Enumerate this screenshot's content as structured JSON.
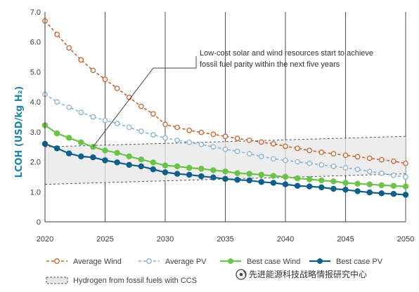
{
  "chart_data": {
    "type": "line",
    "title": "",
    "xlabel": "",
    "ylabel": "LCOH (USD/kg H₂)",
    "xlim": [
      2020,
      2050
    ],
    "ylim": [
      0,
      7
    ],
    "xticks": [
      "2020",
      "2025",
      "2030",
      "2035",
      "2040",
      "2045",
      "2050"
    ],
    "yticks": [
      "0",
      "1.0",
      "2.0",
      "3.0",
      "4.0",
      "5.0",
      "6.0",
      "7.0"
    ],
    "x": [
      2020,
      2021,
      2022,
      2023,
      2024,
      2025,
      2026,
      2027,
      2028,
      2029,
      2030,
      2031,
      2032,
      2033,
      2034,
      2035,
      2036,
      2037,
      2038,
      2039,
      2040,
      2041,
      2042,
      2043,
      2044,
      2045,
      2046,
      2047,
      2048,
      2049,
      2050
    ],
    "grid": "vertical",
    "legend_position": "bottom",
    "annotation": {
      "lines": [
        "Low-cost solar and wind resources start to achieve",
        "fossil fuel parity within the next five years"
      ],
      "points_to": {
        "x": 2024,
        "y": 2.5
      }
    },
    "band": {
      "name": "Hydrogen from fossil fuels with CCS",
      "lower": {
        "x": [
          2020,
          2050
        ],
        "y": [
          1.25,
          1.6
        ]
      },
      "upper": {
        "x": [
          2020,
          2050
        ],
        "y": [
          2.5,
          2.85
        ]
      }
    },
    "series": [
      {
        "name": "Average Wind",
        "style": "dashed-open",
        "color": "#c8632b",
        "values": [
          6.7,
          6.25,
          5.8,
          5.4,
          5.05,
          4.75,
          4.45,
          4.15,
          3.85,
          3.6,
          3.25,
          3.15,
          3.05,
          2.98,
          2.92,
          2.85,
          2.78,
          2.72,
          2.66,
          2.6,
          2.52,
          2.45,
          2.38,
          2.32,
          2.27,
          2.22,
          2.17,
          2.12,
          2.07,
          2.02,
          1.95
        ]
      },
      {
        "name": "Average PV",
        "style": "dashed-open",
        "color": "#8ab3d1",
        "values": [
          4.25,
          4.0,
          3.82,
          3.65,
          3.5,
          3.38,
          3.28,
          3.15,
          3.02,
          2.9,
          2.8,
          2.72,
          2.65,
          2.58,
          2.5,
          2.42,
          2.35,
          2.27,
          2.18,
          2.1,
          2.05,
          2.0,
          1.95,
          1.9,
          1.85,
          1.8,
          1.75,
          1.68,
          1.62,
          1.55,
          1.5
        ]
      },
      {
        "name": "Best case Wind",
        "style": "solid-filled",
        "color": "#6cc24a",
        "values": [
          3.22,
          2.95,
          2.8,
          2.65,
          2.5,
          2.38,
          2.3,
          2.18,
          2.08,
          1.98,
          1.88,
          1.85,
          1.8,
          1.77,
          1.72,
          1.68,
          1.62,
          1.6,
          1.57,
          1.53,
          1.5,
          1.45,
          1.42,
          1.38,
          1.35,
          1.3,
          1.27,
          1.25,
          1.22,
          1.2,
          1.18
        ]
      },
      {
        "name": "Best case PV",
        "style": "solid-filled",
        "color": "#0f5f8a",
        "values": [
          2.6,
          2.45,
          2.28,
          2.18,
          2.15,
          2.05,
          1.98,
          1.9,
          1.85,
          1.75,
          1.65,
          1.6,
          1.57,
          1.52,
          1.48,
          1.43,
          1.4,
          1.38,
          1.33,
          1.3,
          1.25,
          1.2,
          1.18,
          1.15,
          1.1,
          1.07,
          1.02,
          0.98,
          0.95,
          0.93,
          0.9
        ]
      }
    ]
  },
  "watermark": "先进能源科技战略情报研究中心",
  "watermark_icon": "wechat-official-account-icon"
}
